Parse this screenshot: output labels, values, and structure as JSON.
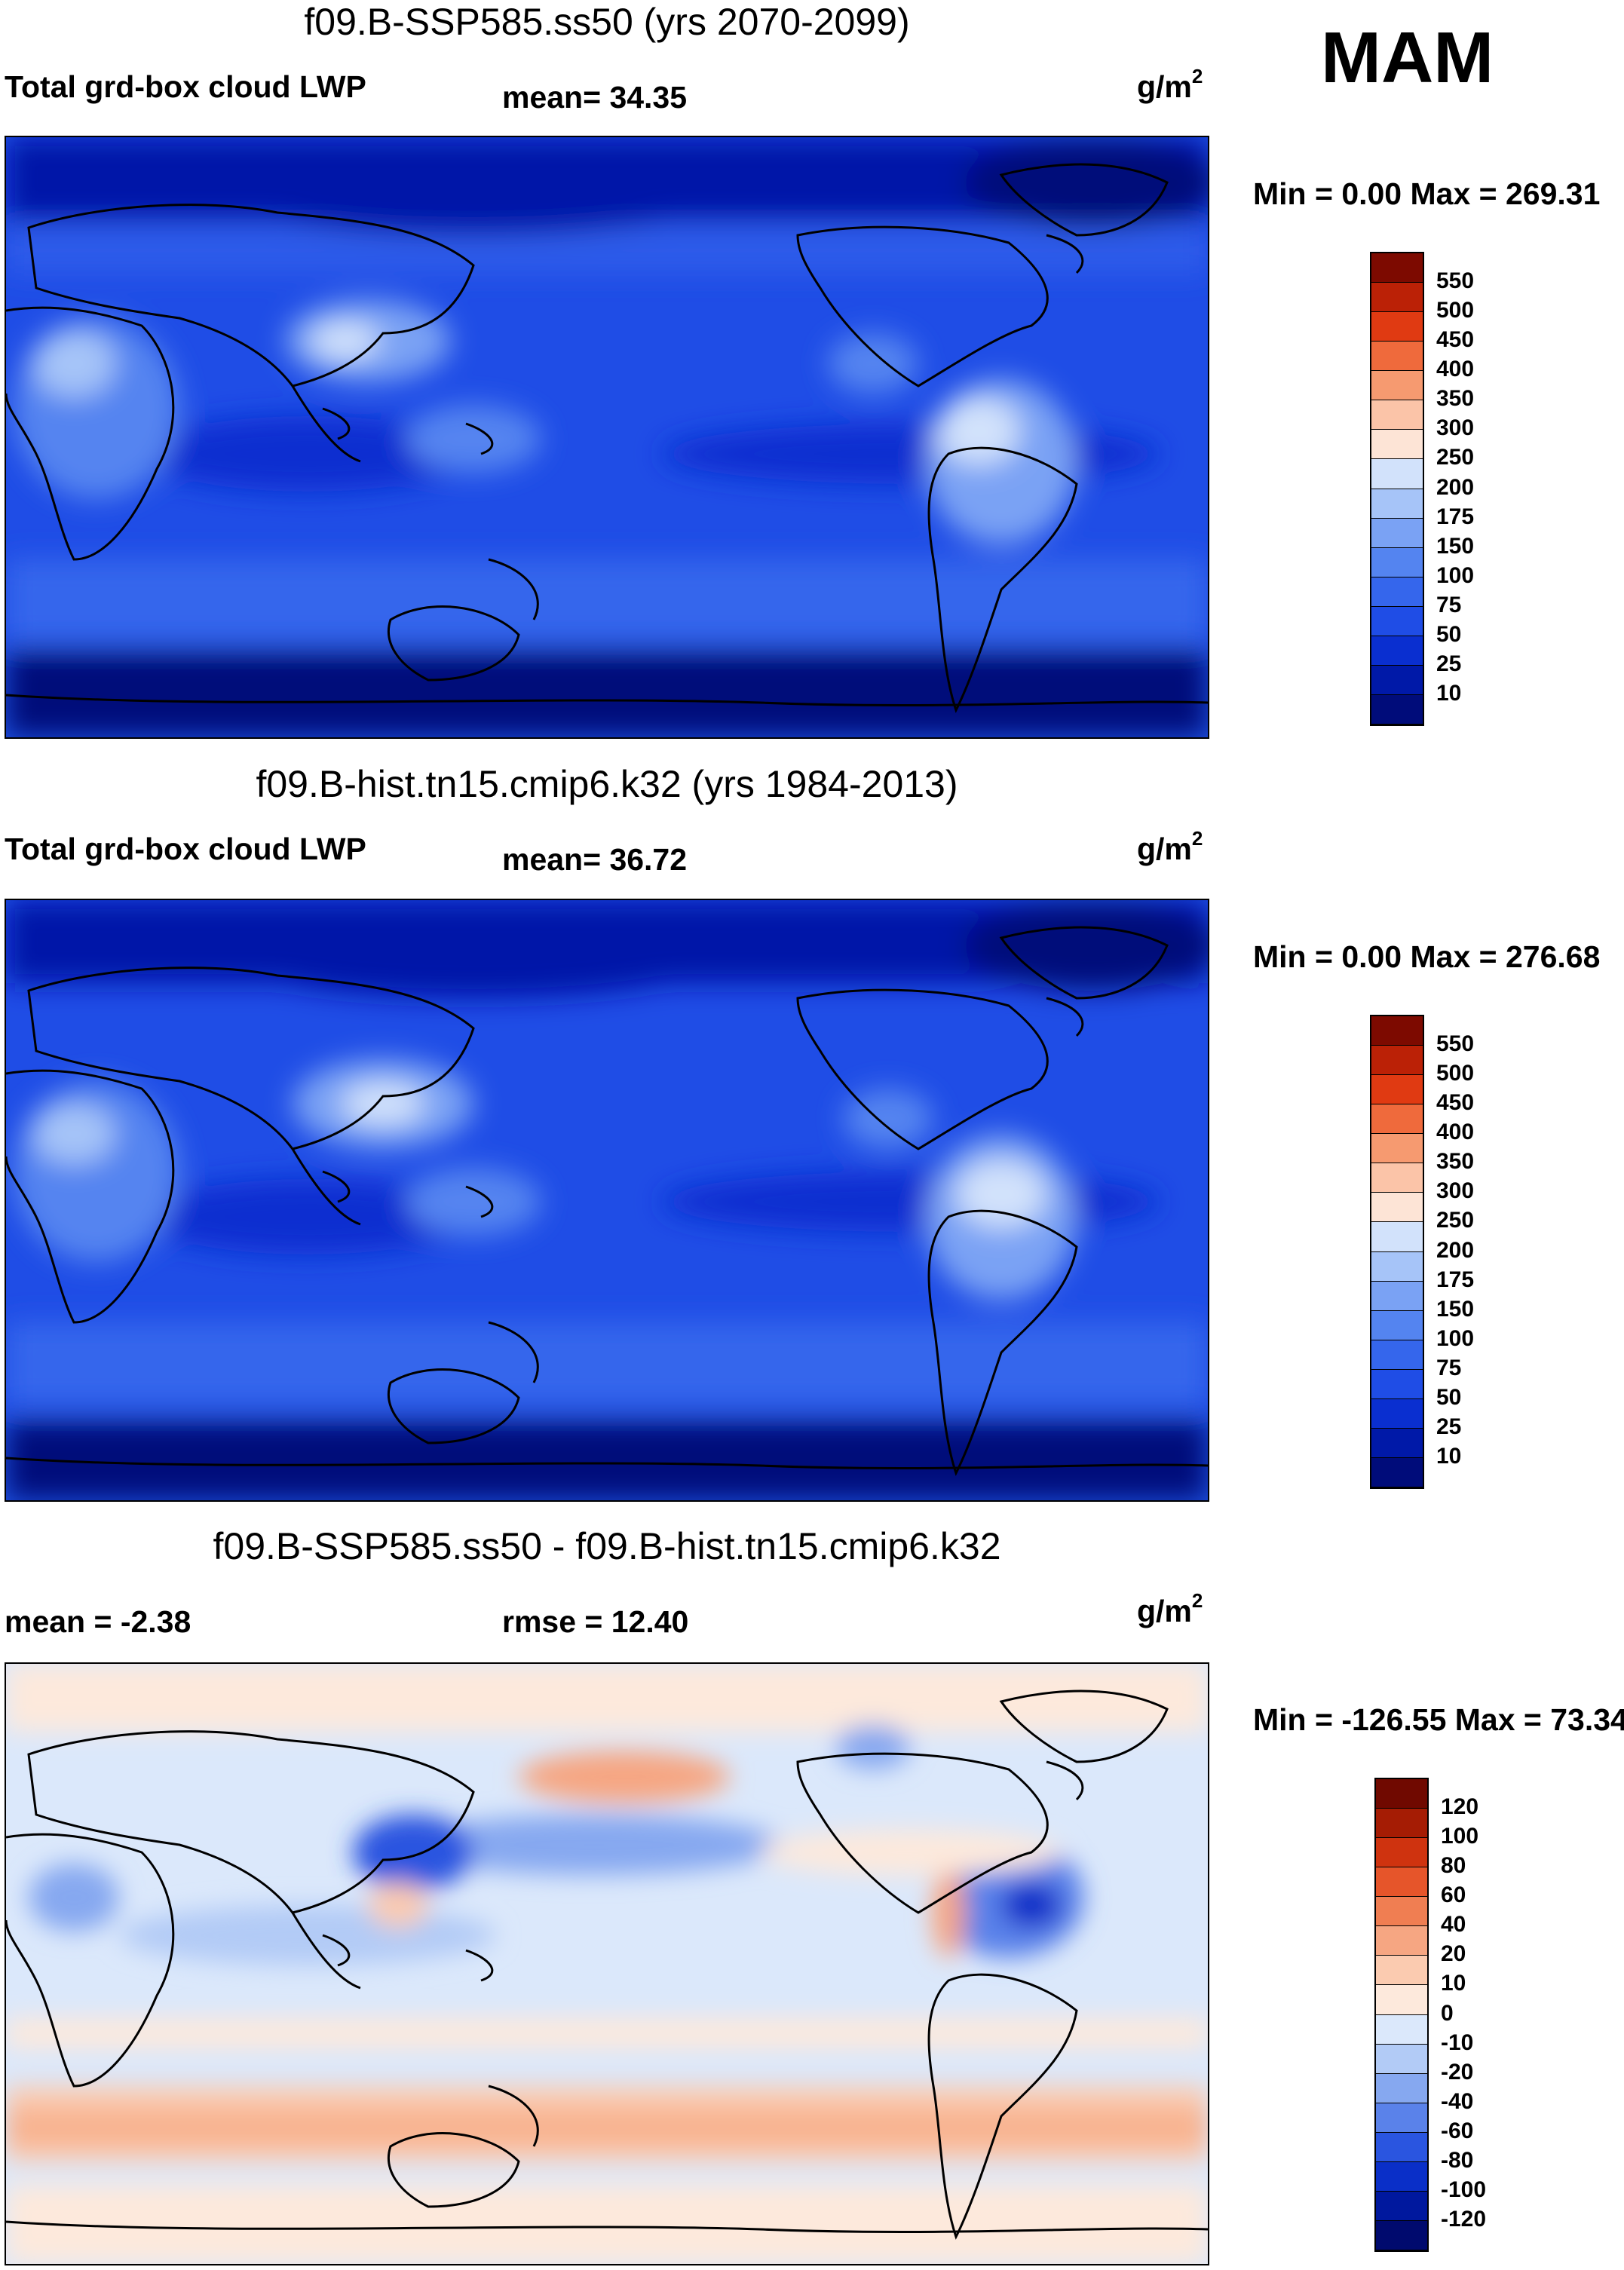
{
  "season": "MAM",
  "panels": [
    {
      "title": "f09.B-SSP585.ss50 (yrs 2070-2099)",
      "left_label": "Total grd-box cloud LWP",
      "center_label": "mean=  34.35",
      "unit_base": "g/m",
      "unit_sup": "2",
      "minmax": "Min =   0.00 Max = 269.31",
      "colorbar": {
        "levels": [
          "10",
          "25",
          "50",
          "75",
          "100",
          "150",
          "175",
          "200",
          "250",
          "300",
          "350",
          "400",
          "450",
          "500",
          "550"
        ],
        "colors": [
          "#000c7a",
          "#0019a8",
          "#0a2fd0",
          "#1f4de6",
          "#3566ec",
          "#5484f0",
          "#7aa2f4",
          "#a6c4f8",
          "#d2e2fb",
          "#fde4d6",
          "#fbc4a8",
          "#f69a70",
          "#ef6a3c",
          "#e03a12",
          "#bb2106",
          "#7d0a00"
        ]
      },
      "kind": "abs",
      "chart_data": {
        "type": "heatmap",
        "title": "f09.B-SSP585.ss50 (yrs 2070-2099)",
        "variable": "Total grd-box cloud LWP",
        "units": "g/m2",
        "mean": 34.35,
        "min": 0.0,
        "max": 269.31
      }
    },
    {
      "title": "f09.B-hist.tn15.cmip6.k32 (yrs 1984-2013)",
      "left_label": "Total grd-box cloud LWP",
      "center_label": "mean=  36.72",
      "unit_base": "g/m",
      "unit_sup": "2",
      "minmax": "Min =   0.00 Max = 276.68",
      "colorbar": {
        "levels": [
          "10",
          "25",
          "50",
          "75",
          "100",
          "150",
          "175",
          "200",
          "250",
          "300",
          "350",
          "400",
          "450",
          "500",
          "550"
        ],
        "colors": [
          "#000c7a",
          "#0019a8",
          "#0a2fd0",
          "#1f4de6",
          "#3566ec",
          "#5484f0",
          "#7aa2f4",
          "#a6c4f8",
          "#d2e2fb",
          "#fde4d6",
          "#fbc4a8",
          "#f69a70",
          "#ef6a3c",
          "#e03a12",
          "#bb2106",
          "#7d0a00"
        ]
      },
      "kind": "abs",
      "chart_data": {
        "type": "heatmap",
        "title": "f09.B-hist.tn15.cmip6.k32 (yrs 1984-2013)",
        "variable": "Total grd-box cloud LWP",
        "units": "g/m2",
        "mean": 36.72,
        "min": 0.0,
        "max": 276.68
      }
    },
    {
      "title": "f09.B-SSP585.ss50 - f09.B-hist.tn15.cmip6.k32",
      "left_label": "mean =  -2.38",
      "center_label": "rmse =  12.40",
      "unit_base": "g/m",
      "unit_sup": "2",
      "minmax": "Min = -126.55 Max =  73.34",
      "colorbar": {
        "levels": [
          "-120",
          "-100",
          "-80",
          "-60",
          "-40",
          "-20",
          "-10",
          "0",
          "10",
          "20",
          "40",
          "60",
          "80",
          "100",
          "120"
        ],
        "colors": [
          "#000a6e",
          "#00189e",
          "#0a2fc8",
          "#2a55e0",
          "#5a82ea",
          "#86a8f0",
          "#b2cbf6",
          "#dbe8fb",
          "#fde9dc",
          "#fbcbb0",
          "#f6a682",
          "#f07e52",
          "#e6552a",
          "#cf330f",
          "#a51c04",
          "#700900"
        ]
      },
      "kind": "diff",
      "chart_data": {
        "type": "heatmap",
        "title": "f09.B-SSP585.ss50 - f09.B-hist.tn15.cmip6.k32",
        "units": "g/m2",
        "mean": -2.38,
        "rmse": 12.4,
        "min": -126.55,
        "max": 73.34
      }
    }
  ]
}
